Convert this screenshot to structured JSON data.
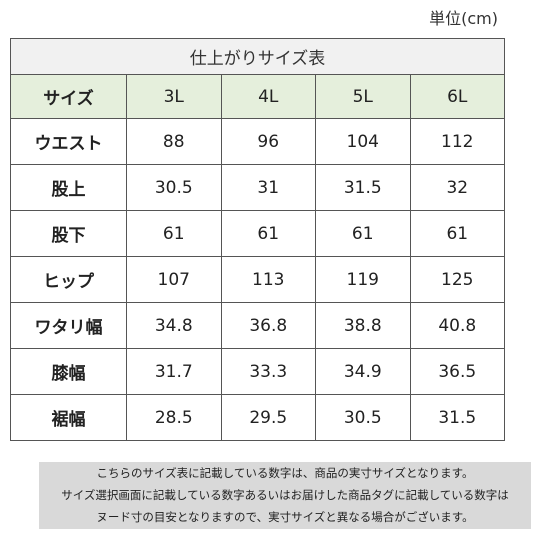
{
  "unit_label": "単位(cm)",
  "table": {
    "title": "仕上がりサイズ表",
    "header": [
      "サイズ",
      "3L",
      "4L",
      "5L",
      "6L"
    ],
    "rows": [
      {
        "label": "ウエスト",
        "values": [
          "88",
          "96",
          "104",
          "112"
        ]
      },
      {
        "label": "股上",
        "values": [
          "30.5",
          "31",
          "31.5",
          "32"
        ]
      },
      {
        "label": "股下",
        "values": [
          "61",
          "61",
          "61",
          "61"
        ]
      },
      {
        "label": "ヒップ",
        "values": [
          "107",
          "113",
          "119",
          "125"
        ]
      },
      {
        "label": "ワタリ幅",
        "values": [
          "34.8",
          "36.8",
          "38.8",
          "40.8"
        ]
      },
      {
        "label": "膝幅",
        "values": [
          "31.7",
          "33.3",
          "34.9",
          "36.5"
        ]
      },
      {
        "label": "裾幅",
        "values": [
          "28.5",
          "29.5",
          "30.5",
          "31.5"
        ]
      }
    ]
  },
  "note": {
    "lines": [
      "こちらのサイズ表に記載している数字は、商品の実寸サイズとなります。",
      "サイズ選択画面に記載している数字あるいはお届けした商品タグに記載している数字は",
      "ヌード寸の目安となりますので、実寸サイズと異なる場合がございます。"
    ]
  }
}
